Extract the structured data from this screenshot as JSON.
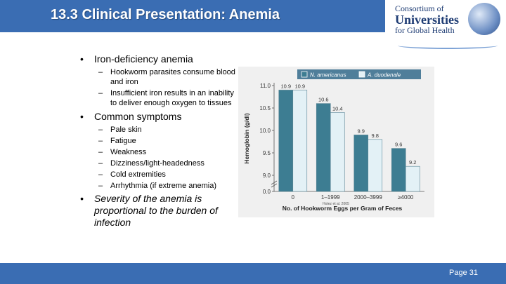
{
  "slide": {
    "title": "13.3 Clinical Presentation: Anemia",
    "page_label": "Page 31"
  },
  "logo": {
    "line1": "Consortium of",
    "line2": "Universities",
    "line3": "for Global Health",
    "icon": "globe-icon"
  },
  "bullets": {
    "b1": "Iron-deficiency anemia",
    "b1_sub": [
      "Hookworm parasites consume blood and iron",
      "Insufficient iron results in an inability to deliver enough oxygen to tissues"
    ],
    "b2": "Common symptoms",
    "b2_sub": [
      "Pale skin",
      "Fatigue",
      "Weakness",
      "Dizziness/light-headedness",
      "Cold extremities",
      "Arrhythmia (if extreme anemia)"
    ],
    "b3": "Severity of the anemia is proportional to the burden of infection"
  },
  "chart_data": {
    "type": "bar",
    "categories": [
      "0",
      "1–1999",
      "2000–3999",
      "≥4000"
    ],
    "series": [
      {
        "name": "N. americanus",
        "values": [
          10.9,
          10.6,
          9.9,
          9.6
        ],
        "color": "#3d7d92"
      },
      {
        "name": "A. duodenale",
        "values": [
          10.9,
          10.4,
          9.8,
          9.2
        ],
        "color": "#e3f1f6"
      }
    ],
    "data_labels": [
      [
        "10.9",
        "10.6",
        "9.9",
        "9.6"
      ],
      [
        "10.9",
        "10.4",
        "9.8",
        "9.2"
      ]
    ],
    "yticks": [
      "0.0",
      "9.0",
      "9.5",
      "10.0",
      "10.5",
      "11.0"
    ],
    "ylim": [
      9.0,
      11.0
    ],
    "axis_break": true,
    "ylabel": "Hemoglobin (g/dl)",
    "xlabel": "No. of Hookworm Eggs per Gram of Feces",
    "source": "Hotez et al. 2005",
    "legend_position": "top"
  }
}
